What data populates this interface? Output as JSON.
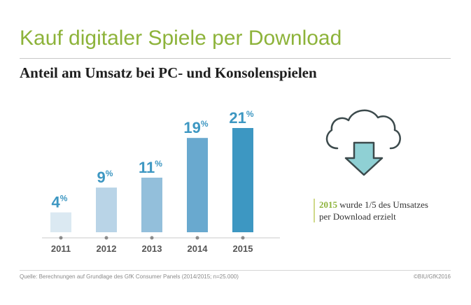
{
  "header": {
    "title": "Kauf digitaler Spiele per Download",
    "subtitle": "Anteil am Umsatz bei PC- und Konsolenspielen"
  },
  "chart_data": {
    "type": "bar",
    "categories": [
      "2011",
      "2012",
      "2013",
      "2014",
      "2015"
    ],
    "values": [
      4,
      9,
      11,
      19,
      21
    ],
    "value_labels": [
      "4",
      "9",
      "11",
      "19",
      "21"
    ],
    "unit": "%",
    "title": "Kauf digitaler Spiele per Download",
    "subtitle": "Anteil am Umsatz bei PC- und Konsolenspielen",
    "xlabel": "",
    "ylabel": "",
    "ylim": [
      0,
      21
    ],
    "grid": false,
    "legend": "none",
    "bar_colors": [
      "#dbe9f2",
      "#b9d4e7",
      "#93bfdb",
      "#69a9cf",
      "#3d97c2"
    ],
    "label_color": "#3d97c2"
  },
  "callout": {
    "year": "2015",
    "text_line1": " wurde 1/5 des Umsatzes",
    "text_line2": "per Download erzielt"
  },
  "icon": {
    "name": "cloud-download-icon",
    "cloud_stroke": "#3c4a4c",
    "arrow_fill": "#8fd0d4"
  },
  "footer": {
    "source": "Quelle: Berechnungen auf Grundlage des GfK Consumer Panels (2014/2015; n=25.000)",
    "copyright": "©BIU/GfK2016"
  }
}
